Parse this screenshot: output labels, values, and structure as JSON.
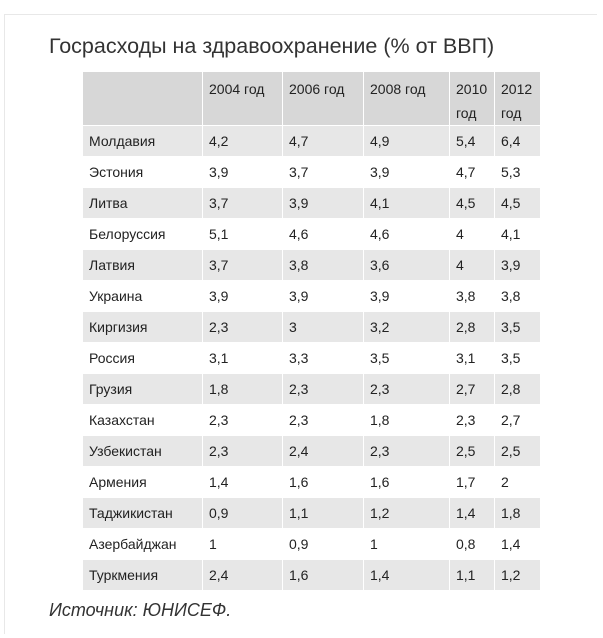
{
  "title": "Госрасходы на здравоохранение (% от ВВП)",
  "source": "Источник: ЮНИСЕФ.",
  "chart_data": {
    "type": "table",
    "title": "Госрасходы на здравоохранение (% от ВВП)",
    "columns": [
      "",
      "2004 год",
      "2006 год",
      "2008 год",
      "2010 год",
      "2012 год"
    ],
    "rows": [
      [
        "Молдавия",
        "4,2",
        "4,7",
        "4,9",
        "5,4",
        "6,4"
      ],
      [
        "Эстония",
        "3,9",
        "3,7",
        "3,9",
        "4,7",
        "5,3"
      ],
      [
        "Литва",
        "3,7",
        "3,9",
        "4,1",
        "4,5",
        "4,5"
      ],
      [
        "Белоруссия",
        "5,1",
        "4,6",
        "4,6",
        "4",
        "4,1"
      ],
      [
        "Латвия",
        "3,7",
        "3,8",
        "3,6",
        "4",
        "3,9"
      ],
      [
        "Украина",
        "3,9",
        "3,9",
        "3,9",
        "3,8",
        "3,8"
      ],
      [
        "Киргизия",
        "2,3",
        "3",
        "3,2",
        "2,8",
        "3,5"
      ],
      [
        "Россия",
        "3,1",
        "3,3",
        "3,5",
        "3,1",
        "3,5"
      ],
      [
        "Грузия",
        "1,8",
        "2,3",
        "2,3",
        "2,7",
        "2,8"
      ],
      [
        "Казахстан",
        "2,3",
        "2,3",
        "1,8",
        "2,3",
        "2,7"
      ],
      [
        "Узбекистан",
        "2,3",
        "2,4",
        "2,3",
        "2,5",
        "2,5"
      ],
      [
        "Армения",
        "1,4",
        "1,6",
        "1,6",
        "1,7",
        "2"
      ],
      [
        "Таджикистан",
        "0,9",
        "1,1",
        "1,2",
        "1,4",
        "1,8"
      ],
      [
        "Азербайджан",
        "1",
        "0,9",
        "1",
        "0,8",
        "1,4"
      ],
      [
        "Туркмения",
        "2,4",
        "1,6",
        "1,4",
        "1,1",
        "1,2"
      ]
    ]
  }
}
